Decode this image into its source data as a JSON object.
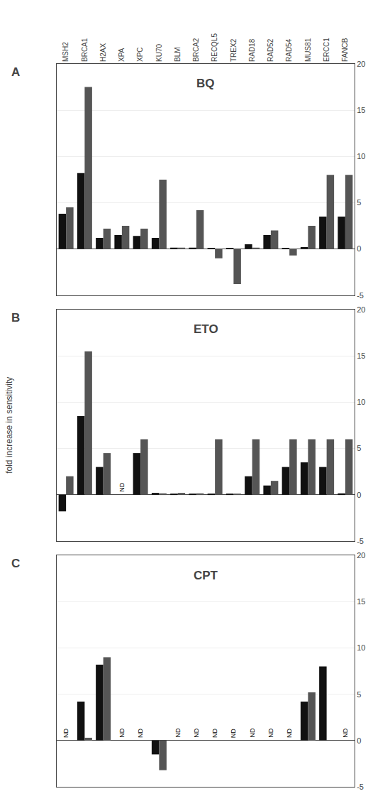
{
  "chart_data": [
    {
      "type": "bar",
      "title": "BQ",
      "categories": [
        "MSH2",
        "BRCA1",
        "H2AX",
        "XPA",
        "XPC",
        "KU70",
        "BLM",
        "BRCA2",
        "RECQL5",
        "TREX2",
        "RAD18",
        "RAD52",
        "RAD54",
        "MUS81",
        "ERCC1",
        "FANCB"
      ],
      "series": [
        {
          "color": "#111111",
          "values": [
            3.8,
            8.2,
            1.2,
            1.5,
            1.4,
            1.2,
            0.15,
            0.15,
            0.1,
            0.1,
            0.5,
            1.5,
            0.1,
            0.2,
            3.5,
            3.5
          ]
        },
        {
          "color": "#555555",
          "values": [
            4.5,
            17.5,
            2.2,
            2.5,
            2.2,
            7.5,
            0.15,
            4.2,
            -1.0,
            -3.8,
            0.15,
            2.0,
            -0.7,
            2.5,
            8.0,
            8.0
          ]
        }
      ],
      "annotations": [
        {
          "text": "A"
        }
      ],
      "ylim": [
        -5,
        20
      ],
      "yticks": [
        -5,
        0,
        5,
        10,
        15,
        20
      ],
      "grid": true
    },
    {
      "type": "bar",
      "title": "ETO",
      "ylabel": "fold increase in sensitivity",
      "categories": [
        "MSH2",
        "BRCA1",
        "H2AX",
        "XPA",
        "XPC",
        "KU70",
        "BLM",
        "BRCA2",
        "RECQL5",
        "TREX2",
        "RAD18",
        "RAD52",
        "RAD54",
        "MUS81",
        "ERCC1",
        "FANCB"
      ],
      "series": [
        {
          "color": "#111111",
          "values": [
            -1.8,
            8.5,
            3.0,
            null,
            4.5,
            0.2,
            0.1,
            0.1,
            0.1,
            0.1,
            2.0,
            1.0,
            3.0,
            3.5,
            3.0,
            0.15
          ]
        },
        {
          "color": "#555555",
          "values": [
            2.0,
            15.5,
            4.5,
            null,
            6.0,
            0.15,
            0.2,
            0.15,
            6.0,
            0.1,
            6.0,
            1.5,
            6.0,
            6.0,
            6.0,
            6.0
          ]
        }
      ],
      "annotations": [
        {
          "text": "B"
        },
        {
          "text": "ND",
          "x": "XPA",
          "y": 0.15
        }
      ],
      "ylim": [
        -5,
        20
      ],
      "yticks": [
        -5,
        0,
        5,
        10,
        15,
        20
      ],
      "grid": true,
      "tick_labels": "y"
    },
    {
      "type": "bar",
      "title": "CPT",
      "categories": [
        "MSH2",
        "BRCA1",
        "H2AX",
        "XPA",
        "XPC",
        "KU70",
        "BLM",
        "BRCA2",
        "RECQL5",
        "TREX2",
        "RAD18",
        "RAD52",
        "RAD54",
        "MUS81",
        "ERCC1",
        "FANCB"
      ],
      "series": [
        {
          "color": "#111111",
          "values": [
            null,
            4.2,
            8.2,
            null,
            null,
            -1.5,
            null,
            null,
            null,
            null,
            null,
            null,
            null,
            4.2,
            8.0,
            null
          ]
        },
        {
          "color": "#555555",
          "values": [
            null,
            0.3,
            9.0,
            null,
            null,
            -3.2,
            null,
            null,
            null,
            null,
            null,
            null,
            null,
            5.2,
            null,
            null
          ]
        }
      ],
      "annotations": [
        {
          "text": "C"
        },
        {
          "text": "ND",
          "x": "MSH2",
          "y": 0.15
        },
        {
          "text": "ND",
          "x": "XPA",
          "y": 0.15
        },
        {
          "text": "ND",
          "x": "XPC",
          "y": 0.15
        },
        {
          "text": "ND",
          "x": "BLM",
          "y": 0.15
        },
        {
          "text": "ND",
          "x": "BRCA2",
          "y": 0.15
        },
        {
          "text": "ND",
          "x": "RECQL5",
          "y": 0.15
        },
        {
          "text": "ND",
          "x": "TREX2",
          "y": 0.15
        },
        {
          "text": "ND",
          "x": "RAD18",
          "y": 0.15
        },
        {
          "text": "ND",
          "x": "RAD52",
          "y": 0.15
        },
        {
          "text": "ND",
          "x": "RAD54",
          "y": 0.15
        },
        {
          "text": "ND",
          "x": "FANCB",
          "y": 0.15
        }
      ],
      "ylim": [
        -5,
        20
      ],
      "yticks": [
        -5,
        0,
        5,
        10,
        15,
        20
      ],
      "grid": true,
      "tick_labels": "y"
    }
  ]
}
